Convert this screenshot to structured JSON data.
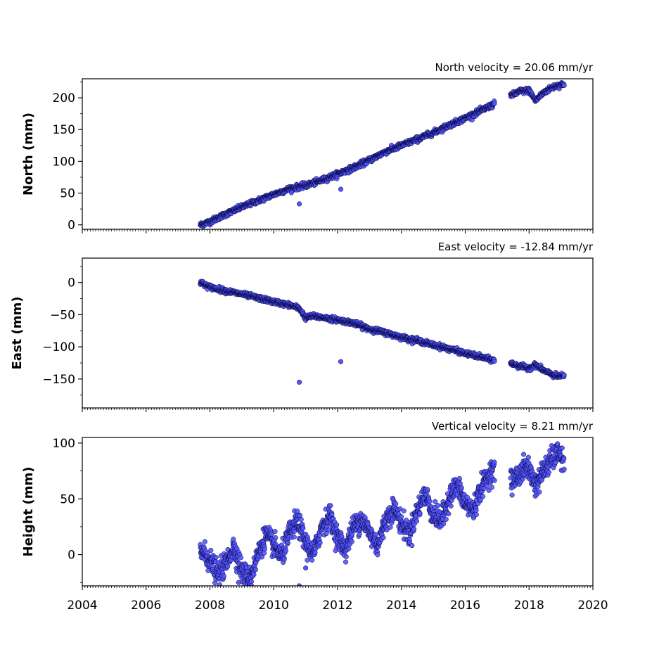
{
  "colors": {
    "marker_fill": "#5555ff",
    "marker_edge": "#000033",
    "axis": "#000000",
    "background": "#ffffff"
  },
  "chart_data": [
    {
      "type": "scatter",
      "title": "North velocity = 20.06 mm/yr",
      "xlabel": "",
      "ylabel": "North (mm)",
      "xlim": [
        2004,
        2020
      ],
      "ylim": [
        -7,
        230
      ],
      "yticks": [
        0,
        50,
        100,
        150,
        200
      ],
      "yticklabels": [
        "0",
        "50",
        "100",
        "150",
        "200"
      ],
      "xticks": [],
      "xticklabels": [],
      "grid": false,
      "series": [
        {
          "x": [
            2007.7,
            2008.0,
            2008.5,
            2009.0,
            2009.5,
            2010.0,
            2010.5,
            2011.0,
            2011.5,
            2012.0,
            2012.5,
            2013.0,
            2013.5,
            2014.0,
            2014.5,
            2015.0,
            2015.5,
            2016.0,
            2016.5,
            2016.9,
            2017.45,
            2017.7,
            2018.0,
            2018.2,
            2018.5,
            2018.8,
            2019.1
          ],
          "y": [
            0,
            5,
            17,
            28,
            38,
            48,
            57,
            62,
            70,
            80,
            90,
            102,
            115,
            125,
            135,
            145,
            157,
            168,
            180,
            190,
            204,
            210,
            212,
            196,
            210,
            218,
            222
          ],
          "outliers_x": [
            2010.8,
            2012.1
          ],
          "outliers_y": [
            33,
            56
          ]
        }
      ]
    },
    {
      "type": "scatter",
      "title": "East velocity = -12.84 mm/yr",
      "xlabel": "",
      "ylabel": "East (mm)",
      "xlim": [
        2004,
        2020
      ],
      "ylim": [
        -195,
        38
      ],
      "yticks": [
        0,
        -50,
        -100,
        -150
      ],
      "yticklabels": [
        "0",
        "−50",
        "−100",
        "−150"
      ],
      "xticks": [],
      "xticklabels": [],
      "grid": false,
      "series": [
        {
          "x": [
            2007.7,
            2008.0,
            2008.5,
            2009.0,
            2009.5,
            2010.0,
            2010.5,
            2010.8,
            2011.0,
            2011.2,
            2011.5,
            2012.0,
            2012.5,
            2013.0,
            2013.5,
            2014.0,
            2014.5,
            2015.0,
            2015.5,
            2016.0,
            2016.5,
            2016.9,
            2017.45,
            2017.7,
            2018.0,
            2018.2,
            2018.5,
            2018.8,
            2019.1
          ],
          "y": [
            0,
            -7,
            -13,
            -18,
            -24,
            -30,
            -35,
            -40,
            -55,
            -52,
            -54,
            -58,
            -63,
            -72,
            -78,
            -85,
            -90,
            -97,
            -103,
            -110,
            -116,
            -121,
            -126,
            -130,
            -133,
            -128,
            -138,
            -145,
            -146
          ],
          "outliers_x": [
            2010.8,
            2012.1
          ],
          "outliers_y": [
            -155,
            -123
          ]
        }
      ]
    },
    {
      "type": "scatter",
      "title": "Vertical velocity = 8.21 mm/yr",
      "xlabel": "",
      "ylabel": "Height (mm)",
      "xlim": [
        2004,
        2020
      ],
      "ylim": [
        -28,
        105
      ],
      "yticks": [
        0,
        50,
        100
      ],
      "yticklabels": [
        "0",
        "50",
        "100"
      ],
      "xticks": [
        2004,
        2006,
        2008,
        2010,
        2012,
        2014,
        2016,
        2018,
        2020
      ],
      "xticklabels": [
        "2004",
        "2006",
        "2008",
        "2010",
        "2012",
        "2014",
        "2016",
        "2018",
        "2020"
      ],
      "grid": false,
      "series": [
        {
          "x": [
            2007.7,
            2008.0,
            2008.25,
            2008.5,
            2008.75,
            2009.0,
            2009.25,
            2009.5,
            2009.75,
            2010.0,
            2010.25,
            2010.5,
            2010.75,
            2011.0,
            2011.25,
            2011.5,
            2011.75,
            2012.0,
            2012.25,
            2012.5,
            2012.75,
            2013.0,
            2013.25,
            2013.5,
            2013.75,
            2014.0,
            2014.25,
            2014.5,
            2014.75,
            2015.0,
            2015.25,
            2015.5,
            2015.75,
            2016.0,
            2016.25,
            2016.5,
            2016.75,
            2016.9,
            2017.45,
            2017.7,
            2017.95,
            2018.2,
            2018.45,
            2018.7,
            2018.95,
            2019.1
          ],
          "y": [
            5,
            -5,
            -18,
            -8,
            8,
            -15,
            -22,
            0,
            18,
            8,
            -2,
            20,
            30,
            10,
            0,
            25,
            35,
            15,
            5,
            25,
            32,
            20,
            8,
            30,
            42,
            28,
            18,
            40,
            55,
            35,
            30,
            52,
            62,
            45,
            40,
            60,
            72,
            78,
            65,
            72,
            80,
            62,
            75,
            85,
            92,
            80
          ],
          "outliers_x": [
            2008.9,
            2009.3,
            2010.8,
            2011.0
          ],
          "outliers_y": [
            -25,
            -28,
            -28,
            -12
          ]
        }
      ]
    }
  ]
}
